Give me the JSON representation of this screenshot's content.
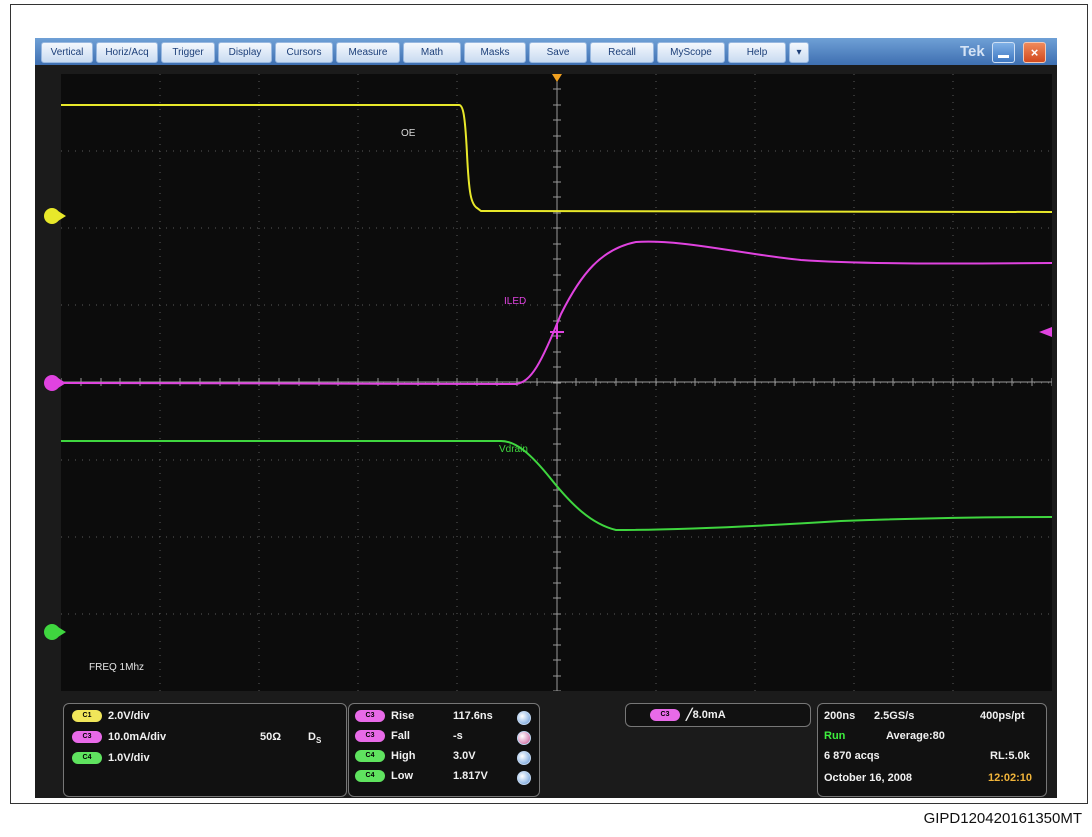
{
  "menu": {
    "items": [
      "Vertical",
      "Horiz/Acq",
      "Trigger",
      "Display",
      "Cursors",
      "Measure",
      "Math",
      "Masks",
      "Save",
      "Recall",
      "MyScope",
      "Help"
    ],
    "more": "▾",
    "brand": "Tek",
    "close_glyph": "×"
  },
  "screen": {
    "labels": {
      "oe": "OE",
      "iled": "ILED",
      "vdrain": "Vdrain",
      "freq": "FREQ 1Mhz"
    },
    "trace_colors": {
      "oe": "#e8e82a",
      "iled": "#e043e0",
      "vdrain": "#3fd63f"
    }
  },
  "channels": [
    {
      "badge": "C1",
      "scale": "2.0V/div",
      "color": "#f0e65a"
    },
    {
      "badge": "C3",
      "scale": "10.0mA/div",
      "color": "#e86ae8"
    },
    {
      "badge": "C4",
      "scale": "1.0V/div",
      "color": "#5fe35f"
    }
  ],
  "impedance": "50Ω",
  "ds_label": "D",
  "ds_sub": "S",
  "measurements": [
    {
      "badge": "C3",
      "name": "Rise",
      "value": "117.6ns",
      "color": "#e86ae8"
    },
    {
      "badge": "C3",
      "name": "Fall",
      "value": "-s",
      "color": "#e86ae8"
    },
    {
      "badge": "C4",
      "name": "High",
      "value": "3.0V",
      "color": "#5fe35f"
    },
    {
      "badge": "C4",
      "name": "Low",
      "value": "1.817V",
      "color": "#5fe35f"
    }
  ],
  "trigger": {
    "badge": "C3",
    "edge_symbol": "╱",
    "level": "8.0mA"
  },
  "acquisition": {
    "timebase": "200ns",
    "sample_rate": "2.5GS/s",
    "resolution": "400ps/pt",
    "state": "Run",
    "mode": "Average:80",
    "acqs": "6 870 acqs",
    "record_length": "RL:5.0k",
    "date": "October 16, 2008",
    "time": "12:02:10"
  },
  "figure_id": "GIPD120420161350MT"
}
